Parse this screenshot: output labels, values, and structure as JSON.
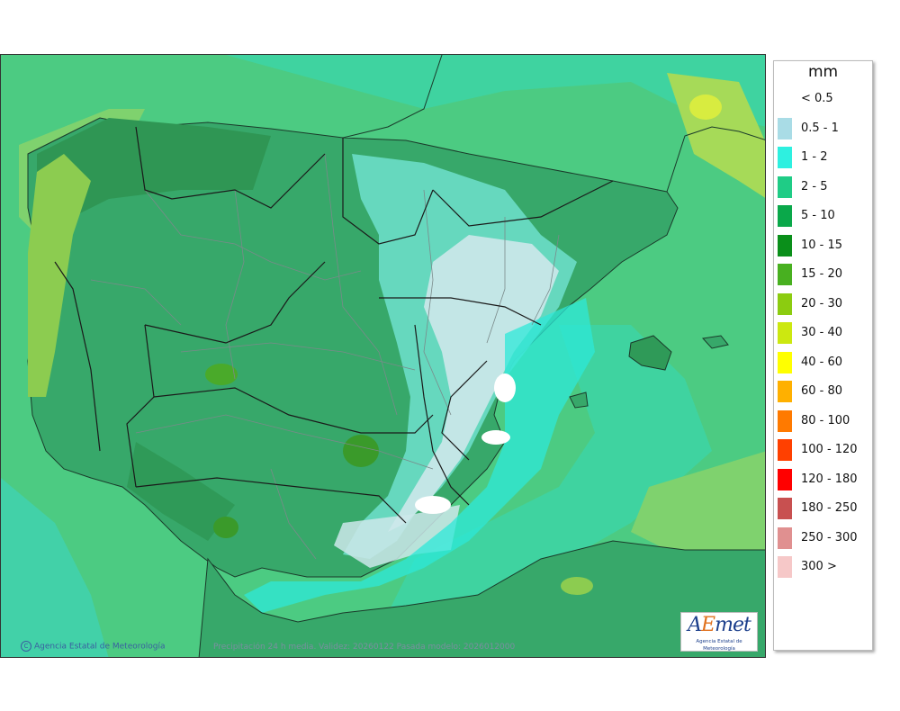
{
  "legend": {
    "unit": "mm",
    "items": [
      {
        "label": "< 0.5",
        "color": "#ffffff"
      },
      {
        "label": "0.5 - 1",
        "color": "#a9dce6"
      },
      {
        "label": "1 - 2",
        "color": "#2ef0e0"
      },
      {
        "label": "2 - 5",
        "color": "#1fcc86"
      },
      {
        "label": "5 - 10",
        "color": "#0aa84a"
      },
      {
        "label": "10 - 15",
        "color": "#0a8f1a"
      },
      {
        "label": "15 - 20",
        "color": "#48b020"
      },
      {
        "label": "20 - 30",
        "color": "#8ccc10"
      },
      {
        "label": "30 - 40",
        "color": "#cce810"
      },
      {
        "label": "40 - 60",
        "color": "#ffff00"
      },
      {
        "label": "60 - 80",
        "color": "#ffb000"
      },
      {
        "label": "80 - 100",
        "color": "#ff7a00"
      },
      {
        "label": "100 - 120",
        "color": "#ff4000"
      },
      {
        "label": "120 - 180",
        "color": "#ff0000"
      },
      {
        "label": "180 - 250",
        "color": "#c85050"
      },
      {
        "label": "250 - 300",
        "color": "#e09090"
      },
      {
        "label": "300 >",
        "color": "#f6c8c8"
      }
    ]
  },
  "map": {
    "credit": "Agencia Estatal de Meteorología",
    "caption": "Precipitación 24 h media. Validez: 20260122 Pasada modelo: 2026012000",
    "logo_mark_a": "A",
    "logo_mark_e": "E",
    "logo_mark_rest": "met",
    "logo_sub": "Agencia Estatal de Meteorología"
  }
}
